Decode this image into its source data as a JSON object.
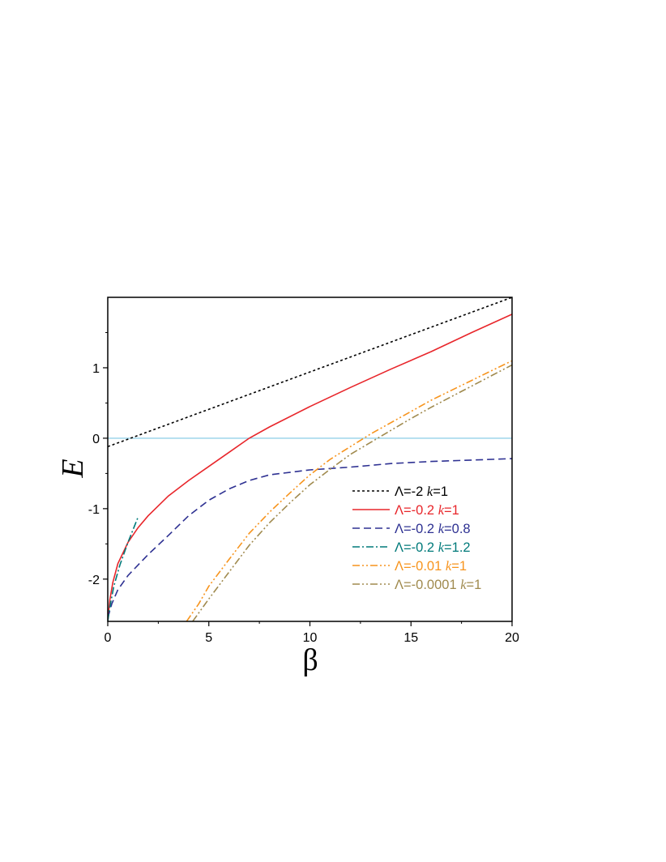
{
  "chart_data": {
    "type": "line",
    "xlabel": "β",
    "ylabel": "E",
    "xlim": [
      0,
      20
    ],
    "ylim": [
      -2.6,
      2.0
    ],
    "x_ticks": [
      0,
      5,
      10,
      15,
      20
    ],
    "x_tick_labels": [
      "0",
      "5",
      "10",
      "15",
      "20"
    ],
    "y_ticks": [
      -2,
      -1,
      0,
      1
    ],
    "y_tick_labels": [
      "-2",
      "-1",
      "0",
      "1"
    ],
    "grid": false,
    "legend_position": "bottom-right",
    "reference_line": {
      "y": 0,
      "color": "#7ec8e3"
    },
    "series": [
      {
        "legend_lambda": "Λ=-2",
        "legend_k": "k",
        "legend_kval": "=1",
        "color": "#000000",
        "dash": "3,3",
        "points": [
          [
            0,
            -0.12
          ],
          [
            20,
            2.0
          ]
        ]
      },
      {
        "legend_lambda": "Λ=-0.2",
        "legend_k": "k",
        "legend_kval": "=1",
        "color": "#e8262b",
        "dash": "",
        "points": [
          [
            0,
            -2.6
          ],
          [
            0.1,
            -2.3
          ],
          [
            0.25,
            -2.05
          ],
          [
            0.5,
            -1.78
          ],
          [
            1,
            -1.48
          ],
          [
            1.5,
            -1.27
          ],
          [
            2,
            -1.1
          ],
          [
            3,
            -0.82
          ],
          [
            4,
            -0.6
          ],
          [
            5,
            -0.4
          ],
          [
            6,
            -0.2
          ],
          [
            7,
            0.0
          ],
          [
            8,
            0.16
          ],
          [
            10,
            0.45
          ],
          [
            12,
            0.72
          ],
          [
            14,
            0.98
          ],
          [
            16,
            1.23
          ],
          [
            18,
            1.5
          ],
          [
            20,
            1.76
          ]
        ]
      },
      {
        "legend_lambda": "Λ=-0.2",
        "legend_k": "k",
        "legend_kval": "=0.8",
        "color": "#2e3192",
        "dash": "9,5",
        "points": [
          [
            0,
            -2.55
          ],
          [
            0.2,
            -2.35
          ],
          [
            0.5,
            -2.15
          ],
          [
            1,
            -1.95
          ],
          [
            1.5,
            -1.8
          ],
          [
            2,
            -1.65
          ],
          [
            3,
            -1.38
          ],
          [
            4,
            -1.1
          ],
          [
            5,
            -0.88
          ],
          [
            6,
            -0.72
          ],
          [
            7,
            -0.6
          ],
          [
            8,
            -0.52
          ],
          [
            10,
            -0.45
          ],
          [
            11,
            -0.43
          ],
          [
            12,
            -0.41
          ],
          [
            14,
            -0.36
          ],
          [
            16,
            -0.33
          ],
          [
            18,
            -0.31
          ],
          [
            20,
            -0.29
          ]
        ]
      },
      {
        "legend_lambda": "Λ=-0.2",
        "legend_k": "k",
        "legend_kval": "=1.2",
        "color": "#007a7a",
        "dash": "9,3,2,3",
        "points": [
          [
            0,
            -2.6
          ],
          [
            0.1,
            -2.4
          ],
          [
            0.3,
            -2.1
          ],
          [
            0.6,
            -1.8
          ],
          [
            1,
            -1.48
          ],
          [
            1.5,
            -1.12
          ]
        ]
      },
      {
        "legend_lambda": "Λ=-0.01",
        "legend_k": "k",
        "legend_kval": "=1",
        "color": "#f7941d",
        "dash": "9,3,2,3,2,3",
        "points": [
          [
            3.9,
            -2.6
          ],
          [
            4.5,
            -2.35
          ],
          [
            5,
            -2.1
          ],
          [
            6,
            -1.72
          ],
          [
            7,
            -1.35
          ],
          [
            8,
            -1.05
          ],
          [
            9,
            -0.78
          ],
          [
            10,
            -0.52
          ],
          [
            11,
            -0.3
          ],
          [
            12,
            -0.12
          ],
          [
            13,
            0.06
          ],
          [
            14,
            0.22
          ],
          [
            15,
            0.38
          ],
          [
            16,
            0.54
          ],
          [
            17,
            0.68
          ],
          [
            18,
            0.82
          ],
          [
            19,
            0.96
          ],
          [
            20,
            1.1
          ]
        ]
      },
      {
        "legend_lambda": "Λ=-0.0001",
        "legend_k": "k",
        "legend_kval": "=1",
        "color": "#a08a4e",
        "dash": "9,3,2,3,2,3",
        "points": [
          [
            4.2,
            -2.6
          ],
          [
            5,
            -2.28
          ],
          [
            6,
            -1.9
          ],
          [
            7,
            -1.52
          ],
          [
            8,
            -1.2
          ],
          [
            9,
            -0.92
          ],
          [
            10,
            -0.66
          ],
          [
            11,
            -0.44
          ],
          [
            12,
            -0.23
          ],
          [
            13,
            -0.06
          ],
          [
            14,
            0.11
          ],
          [
            15,
            0.28
          ],
          [
            16,
            0.44
          ],
          [
            17,
            0.59
          ],
          [
            18,
            0.74
          ],
          [
            19,
            0.89
          ],
          [
            20,
            1.04
          ]
        ]
      }
    ]
  }
}
